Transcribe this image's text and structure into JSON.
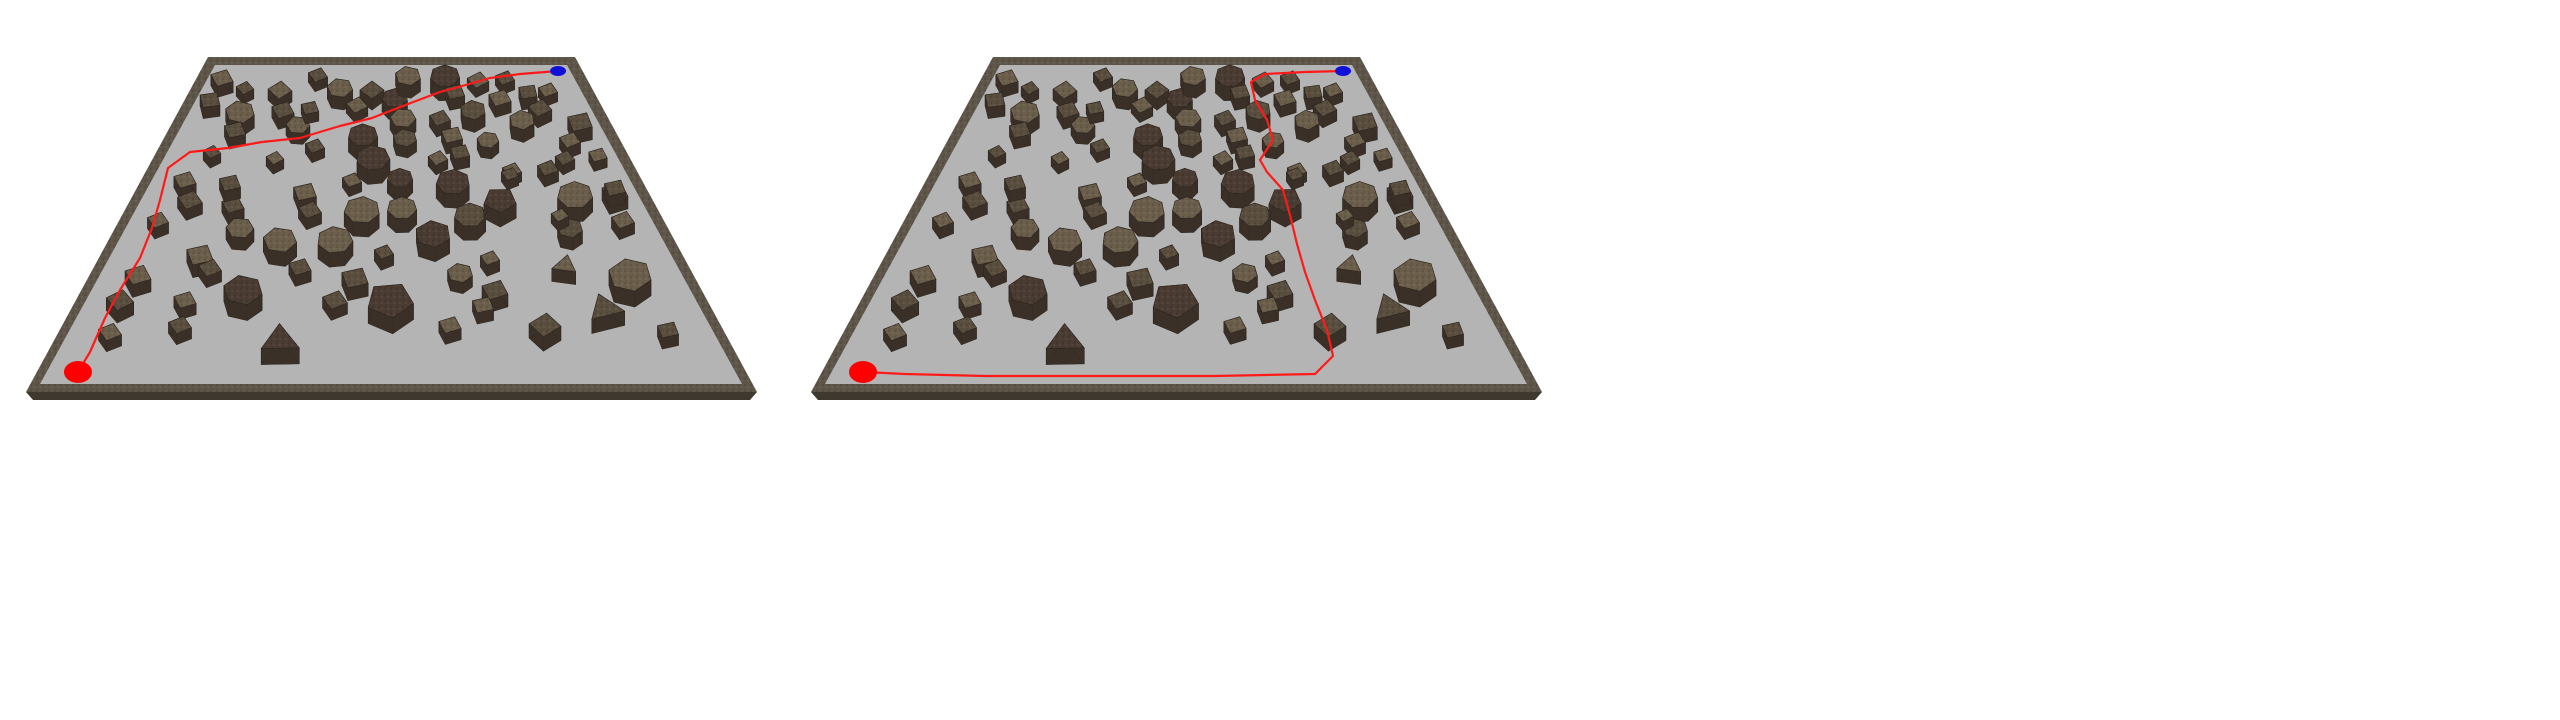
{
  "colors": {
    "background": "#ffffff",
    "floor": "#b4b4b4",
    "wall_top": "#5f564a",
    "wall_side": "#3f382f",
    "obstacle_top_light": "#6b5f4c",
    "obstacle_top_dark": "#4a3c32",
    "obstacle_side": "#3a3128",
    "path": "#ff1a1a",
    "start_marker": "#ff0000",
    "goal_marker": "#1010d8"
  },
  "panels": [
    {
      "panel_id": "left",
      "path_style": "straight-diagonal"
    },
    {
      "panel_id": "right",
      "path_style": "along-bottom-then-up-right"
    }
  ]
}
